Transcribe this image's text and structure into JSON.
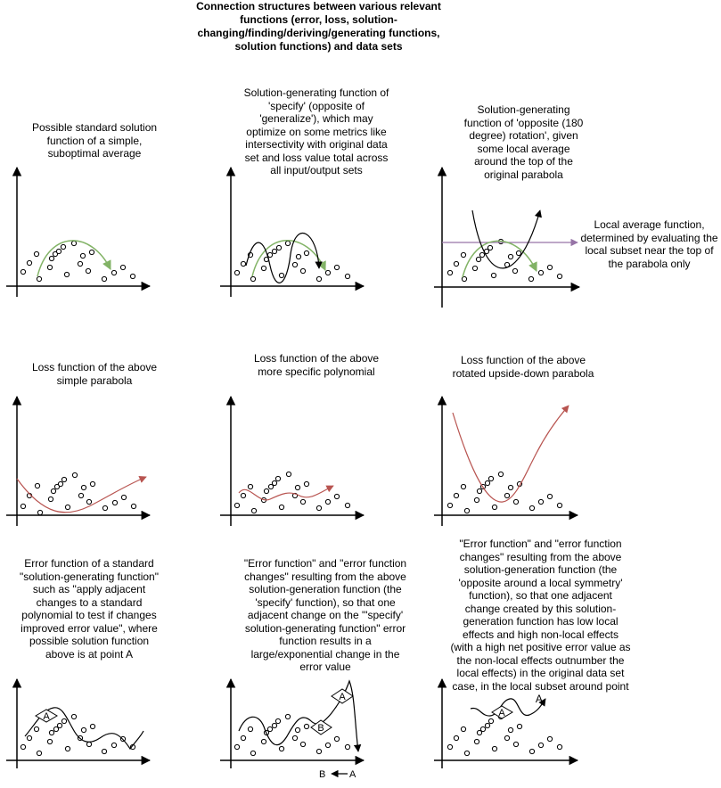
{
  "title": "Connection structures between various relevant functions (error, loss, solution-changing/finding/deriving/generating functions, solution functions) and data sets",
  "captions": {
    "c1": "Possible standard solution function of a simple, suboptimal average",
    "c2": "Solution-generating function of 'specify' (opposite of 'generalize'), which may optimize on some metrics like intersectivity with original data set and loss value total across all input/output sets",
    "c3": "Solution-generating function of 'opposite (180 degree) rotation', given some local average around the top of the original parabola",
    "c3b": "Local average function, determined by evaluating the local subset near the top of the parabola only",
    "c4": "Loss function of the above simple parabola",
    "c5": "Loss function of the above more specific polynomial",
    "c6": "Loss function of the above rotated upside-down parabola",
    "c7": "Error function of a standard \"solution-generating function\" such as \"apply adjacent changes to a standard polynomial to test if changes improved error value\", where possible solution function above is at point A",
    "c8": "\"Error function\" and \"error function changes\" resulting from the above solution-generation function (the 'specify' function), so that one adjacent change on the \"'specify' solution-generating function\" error function results in a large/exponential change in the error value",
    "c9": "\"Error function\" and \"error function changes\" resulting from the above solution-generation function (the 'opposite around a local symmetry' function), so that one adjacent change created by this solution-generation function has low local effects and high non-local effects (with a high net positive error value as the non-local effects outnumber the local effects) in the original data set case, in the local subset around point A."
  },
  "point_labels": {
    "a": "A",
    "b": "B"
  },
  "legend": {
    "b": "B",
    "a": "A"
  },
  "colors": {
    "green": "#82b366",
    "red": "#b85450",
    "purple": "#9673a6"
  }
}
